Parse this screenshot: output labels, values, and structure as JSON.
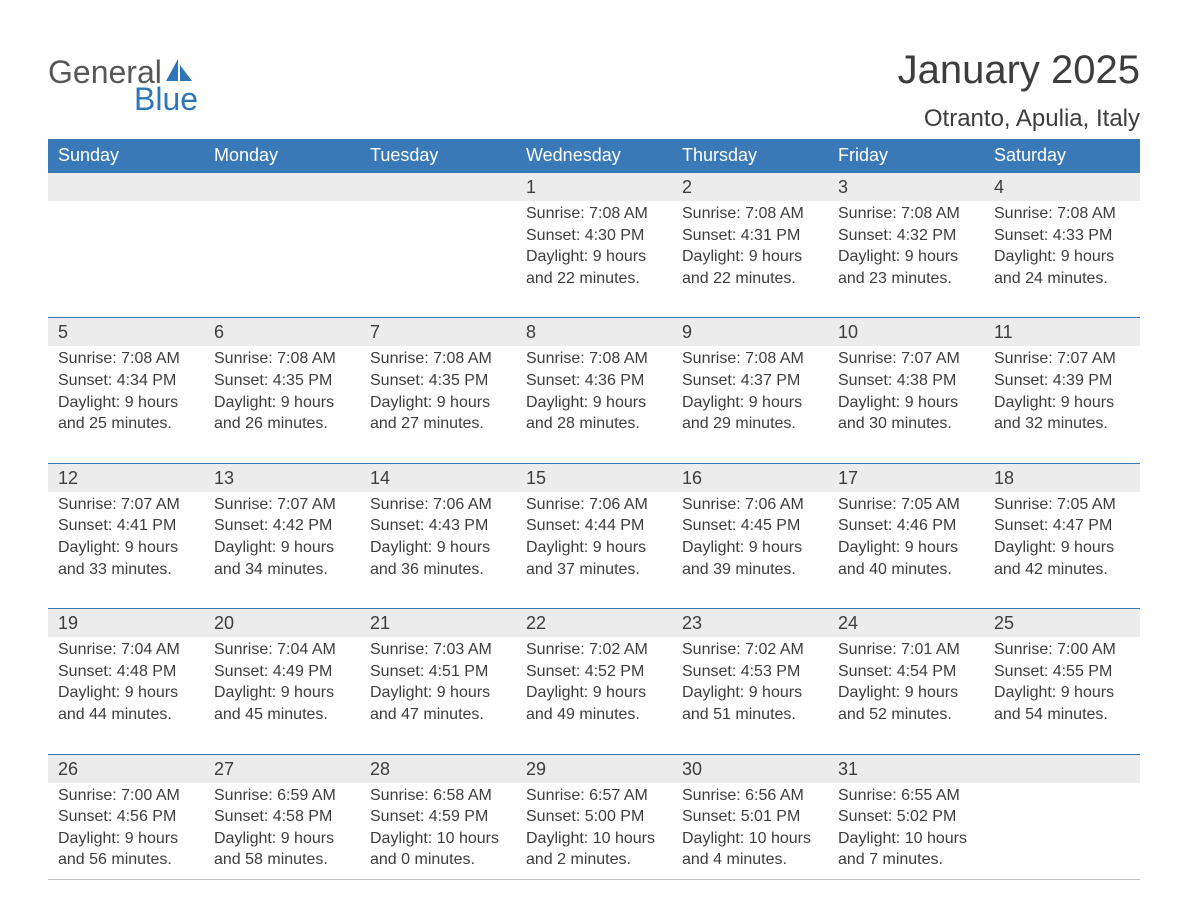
{
  "brand": {
    "word1": "General",
    "word2": "Blue",
    "word1_color": "#575757",
    "word2_color": "#2f76b6",
    "sail_color": "#2f76b6"
  },
  "title": {
    "month": "January 2025",
    "location": "Otranto, Apulia, Italy",
    "month_fontsize": 40,
    "location_fontsize": 24,
    "color": "#3d3d3d"
  },
  "palette": {
    "header_bg": "#3a79b7",
    "header_text": "#ffffff",
    "row_border": "#3a79b7",
    "daynum_bg": "#ececec",
    "daynum_text": "#3d3d3d",
    "body_text": "#3d3d3d",
    "table_bottom_border": "#bfbfbf"
  },
  "day_headers": [
    "Sunday",
    "Monday",
    "Tuesday",
    "Wednesday",
    "Thursday",
    "Friday",
    "Saturday"
  ],
  "weeks": [
    {
      "cells": [
        {
          "day": "",
          "sunrise": "",
          "sunset": "",
          "daylight": ""
        },
        {
          "day": "",
          "sunrise": "",
          "sunset": "",
          "daylight": ""
        },
        {
          "day": "",
          "sunrise": "",
          "sunset": "",
          "daylight": ""
        },
        {
          "day": "1",
          "sunrise": "Sunrise: 7:08 AM",
          "sunset": "Sunset: 4:30 PM",
          "daylight": "Daylight: 9 hours and 22 minutes."
        },
        {
          "day": "2",
          "sunrise": "Sunrise: 7:08 AM",
          "sunset": "Sunset: 4:31 PM",
          "daylight": "Daylight: 9 hours and 22 minutes."
        },
        {
          "day": "3",
          "sunrise": "Sunrise: 7:08 AM",
          "sunset": "Sunset: 4:32 PM",
          "daylight": "Daylight: 9 hours and 23 minutes."
        },
        {
          "day": "4",
          "sunrise": "Sunrise: 7:08 AM",
          "sunset": "Sunset: 4:33 PM",
          "daylight": "Daylight: 9 hours and 24 minutes."
        }
      ]
    },
    {
      "cells": [
        {
          "day": "5",
          "sunrise": "Sunrise: 7:08 AM",
          "sunset": "Sunset: 4:34 PM",
          "daylight": "Daylight: 9 hours and 25 minutes."
        },
        {
          "day": "6",
          "sunrise": "Sunrise: 7:08 AM",
          "sunset": "Sunset: 4:35 PM",
          "daylight": "Daylight: 9 hours and 26 minutes."
        },
        {
          "day": "7",
          "sunrise": "Sunrise: 7:08 AM",
          "sunset": "Sunset: 4:35 PM",
          "daylight": "Daylight: 9 hours and 27 minutes."
        },
        {
          "day": "8",
          "sunrise": "Sunrise: 7:08 AM",
          "sunset": "Sunset: 4:36 PM",
          "daylight": "Daylight: 9 hours and 28 minutes."
        },
        {
          "day": "9",
          "sunrise": "Sunrise: 7:08 AM",
          "sunset": "Sunset: 4:37 PM",
          "daylight": "Daylight: 9 hours and 29 minutes."
        },
        {
          "day": "10",
          "sunrise": "Sunrise: 7:07 AM",
          "sunset": "Sunset: 4:38 PM",
          "daylight": "Daylight: 9 hours and 30 minutes."
        },
        {
          "day": "11",
          "sunrise": "Sunrise: 7:07 AM",
          "sunset": "Sunset: 4:39 PM",
          "daylight": "Daylight: 9 hours and 32 minutes."
        }
      ]
    },
    {
      "cells": [
        {
          "day": "12",
          "sunrise": "Sunrise: 7:07 AM",
          "sunset": "Sunset: 4:41 PM",
          "daylight": "Daylight: 9 hours and 33 minutes."
        },
        {
          "day": "13",
          "sunrise": "Sunrise: 7:07 AM",
          "sunset": "Sunset: 4:42 PM",
          "daylight": "Daylight: 9 hours and 34 minutes."
        },
        {
          "day": "14",
          "sunrise": "Sunrise: 7:06 AM",
          "sunset": "Sunset: 4:43 PM",
          "daylight": "Daylight: 9 hours and 36 minutes."
        },
        {
          "day": "15",
          "sunrise": "Sunrise: 7:06 AM",
          "sunset": "Sunset: 4:44 PM",
          "daylight": "Daylight: 9 hours and 37 minutes."
        },
        {
          "day": "16",
          "sunrise": "Sunrise: 7:06 AM",
          "sunset": "Sunset: 4:45 PM",
          "daylight": "Daylight: 9 hours and 39 minutes."
        },
        {
          "day": "17",
          "sunrise": "Sunrise: 7:05 AM",
          "sunset": "Sunset: 4:46 PM",
          "daylight": "Daylight: 9 hours and 40 minutes."
        },
        {
          "day": "18",
          "sunrise": "Sunrise: 7:05 AM",
          "sunset": "Sunset: 4:47 PM",
          "daylight": "Daylight: 9 hours and 42 minutes."
        }
      ]
    },
    {
      "cells": [
        {
          "day": "19",
          "sunrise": "Sunrise: 7:04 AM",
          "sunset": "Sunset: 4:48 PM",
          "daylight": "Daylight: 9 hours and 44 minutes."
        },
        {
          "day": "20",
          "sunrise": "Sunrise: 7:04 AM",
          "sunset": "Sunset: 4:49 PM",
          "daylight": "Daylight: 9 hours and 45 minutes."
        },
        {
          "day": "21",
          "sunrise": "Sunrise: 7:03 AM",
          "sunset": "Sunset: 4:51 PM",
          "daylight": "Daylight: 9 hours and 47 minutes."
        },
        {
          "day": "22",
          "sunrise": "Sunrise: 7:02 AM",
          "sunset": "Sunset: 4:52 PM",
          "daylight": "Daylight: 9 hours and 49 minutes."
        },
        {
          "day": "23",
          "sunrise": "Sunrise: 7:02 AM",
          "sunset": "Sunset: 4:53 PM",
          "daylight": "Daylight: 9 hours and 51 minutes."
        },
        {
          "day": "24",
          "sunrise": "Sunrise: 7:01 AM",
          "sunset": "Sunset: 4:54 PM",
          "daylight": "Daylight: 9 hours and 52 minutes."
        },
        {
          "day": "25",
          "sunrise": "Sunrise: 7:00 AM",
          "sunset": "Sunset: 4:55 PM",
          "daylight": "Daylight: 9 hours and 54 minutes."
        }
      ]
    },
    {
      "cells": [
        {
          "day": "26",
          "sunrise": "Sunrise: 7:00 AM",
          "sunset": "Sunset: 4:56 PM",
          "daylight": "Daylight: 9 hours and 56 minutes."
        },
        {
          "day": "27",
          "sunrise": "Sunrise: 6:59 AM",
          "sunset": "Sunset: 4:58 PM",
          "daylight": "Daylight: 9 hours and 58 minutes."
        },
        {
          "day": "28",
          "sunrise": "Sunrise: 6:58 AM",
          "sunset": "Sunset: 4:59 PM",
          "daylight": "Daylight: 10 hours and 0 minutes."
        },
        {
          "day": "29",
          "sunrise": "Sunrise: 6:57 AM",
          "sunset": "Sunset: 5:00 PM",
          "daylight": "Daylight: 10 hours and 2 minutes."
        },
        {
          "day": "30",
          "sunrise": "Sunrise: 6:56 AM",
          "sunset": "Sunset: 5:01 PM",
          "daylight": "Daylight: 10 hours and 4 minutes."
        },
        {
          "day": "31",
          "sunrise": "Sunrise: 6:55 AM",
          "sunset": "Sunset: 5:02 PM",
          "daylight": "Daylight: 10 hours and 7 minutes."
        },
        {
          "day": "",
          "sunrise": "",
          "sunset": "",
          "daylight": ""
        }
      ]
    }
  ]
}
